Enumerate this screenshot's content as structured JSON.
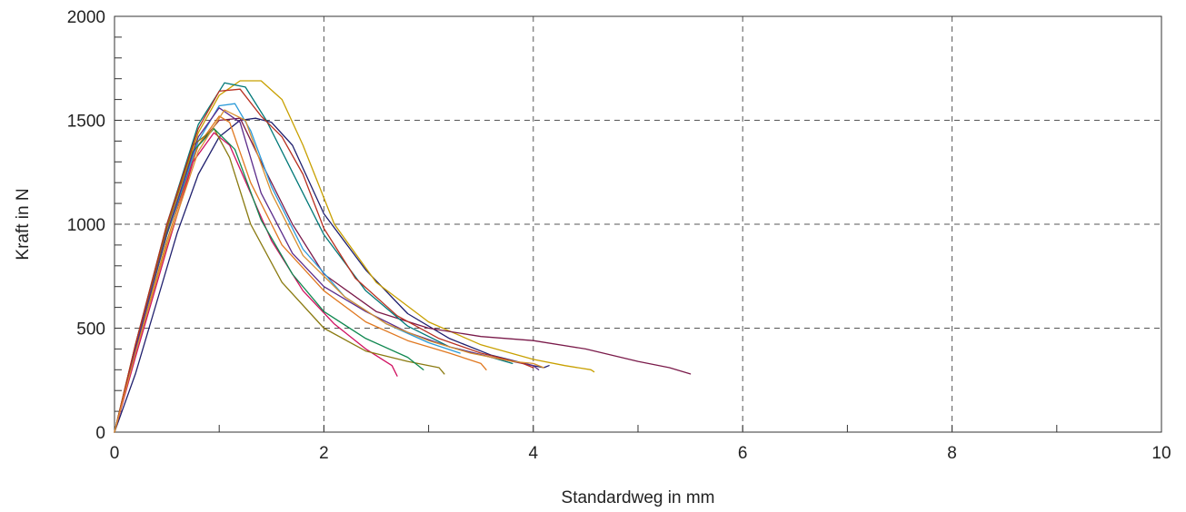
{
  "chart_data": {
    "type": "line",
    "title": "",
    "xlabel": "Standardweg in mm",
    "ylabel": "Kraft in N",
    "xlim": [
      0,
      10
    ],
    "ylim": [
      0,
      2000
    ],
    "xticks": [
      0,
      2,
      4,
      6,
      8,
      10
    ],
    "yticks": [
      0,
      500,
      1000,
      1500,
      2000
    ],
    "xtick_labels": [
      "0",
      "2",
      "4",
      "6",
      "8",
      "10"
    ],
    "ytick_labels": [
      "0",
      "500",
      "1000",
      "1500",
      "2000"
    ],
    "grid": true,
    "legend": "none",
    "series": [
      {
        "color": "#1f1f6e",
        "x": [
          0,
          0.2,
          0.4,
          0.6,
          0.8,
          1.0,
          1.2,
          1.35,
          1.5,
          1.7,
          2.0,
          2.4,
          2.8,
          3.2,
          3.6,
          4.0,
          4.1,
          4.15
        ],
        "y": [
          0,
          280,
          620,
          960,
          1240,
          1420,
          1500,
          1510,
          1490,
          1380,
          1050,
          780,
          570,
          450,
          370,
          320,
          310,
          320
        ]
      },
      {
        "color": "#c8a000",
        "x": [
          0,
          0.2,
          0.5,
          0.8,
          1.0,
          1.2,
          1.4,
          1.6,
          1.8,
          2.1,
          2.5,
          3.0,
          3.5,
          4.0,
          4.3,
          4.55,
          4.58
        ],
        "y": [
          0,
          420,
          980,
          1440,
          1620,
          1690,
          1690,
          1600,
          1380,
          1000,
          720,
          530,
          420,
          350,
          320,
          300,
          290
        ]
      },
      {
        "color": "#7a1a4a",
        "x": [
          0,
          0.2,
          0.5,
          0.8,
          1.0,
          1.2,
          1.4,
          1.7,
          2.0,
          2.5,
          3.0,
          3.5,
          4.0,
          4.5,
          5.0,
          5.3,
          5.5
        ],
        "y": [
          0,
          400,
          950,
          1380,
          1500,
          1510,
          1300,
          1000,
          760,
          580,
          500,
          460,
          440,
          400,
          340,
          310,
          280
        ]
      },
      {
        "color": "#007878",
        "x": [
          0,
          0.2,
          0.5,
          0.8,
          1.05,
          1.25,
          1.45,
          1.7,
          2.0,
          2.4,
          2.8,
          3.2,
          3.6,
          3.8
        ],
        "y": [
          0,
          420,
          1000,
          1480,
          1680,
          1660,
          1500,
          1250,
          950,
          680,
          510,
          410,
          360,
          330
        ]
      },
      {
        "color": "#2a9ad8",
        "x": [
          0,
          0.2,
          0.5,
          0.8,
          1.0,
          1.15,
          1.3,
          1.5,
          1.8,
          2.2,
          2.6,
          3.0,
          3.3
        ],
        "y": [
          0,
          400,
          950,
          1400,
          1570,
          1580,
          1450,
          1180,
          880,
          650,
          520,
          430,
          380
        ]
      },
      {
        "color": "#e07820",
        "x": [
          0,
          0.2,
          0.5,
          0.8,
          1.0,
          1.1,
          1.3,
          1.6,
          2.0,
          2.4,
          2.8,
          3.2,
          3.5,
          3.55
        ],
        "y": [
          0,
          380,
          920,
          1380,
          1520,
          1490,
          1200,
          900,
          680,
          530,
          440,
          380,
          330,
          300
        ]
      },
      {
        "color": "#d01060",
        "x": [
          0,
          0.2,
          0.5,
          0.75,
          0.95,
          1.1,
          1.3,
          1.5,
          1.8,
          2.1,
          2.4,
          2.65,
          2.7
        ],
        "y": [
          0,
          360,
          880,
          1300,
          1440,
          1380,
          1150,
          920,
          680,
          520,
          400,
          320,
          270
        ]
      },
      {
        "color": "#8a7a10",
        "x": [
          0,
          0.2,
          0.5,
          0.75,
          0.95,
          1.1,
          1.3,
          1.6,
          2.0,
          2.4,
          2.8,
          3.1,
          3.15
        ],
        "y": [
          0,
          420,
          980,
          1380,
          1460,
          1320,
          1000,
          720,
          500,
          390,
          340,
          310,
          280
        ]
      },
      {
        "color": "#108850",
        "x": [
          0,
          0.2,
          0.5,
          0.75,
          0.95,
          1.15,
          1.4,
          1.7,
          2.0,
          2.4,
          2.8,
          2.95
        ],
        "y": [
          0,
          400,
          950,
          1350,
          1460,
          1360,
          1020,
          760,
          580,
          450,
          360,
          300
        ]
      },
      {
        "color": "#5a2a8a",
        "x": [
          0,
          0.2,
          0.5,
          0.8,
          1.0,
          1.2,
          1.4,
          1.7,
          2.0,
          2.4,
          2.8,
          3.2,
          3.6,
          4.0,
          4.05
        ],
        "y": [
          0,
          400,
          960,
          1420,
          1560,
          1490,
          1150,
          860,
          700,
          580,
          480,
          410,
          360,
          320,
          300
        ]
      },
      {
        "color": "#b83020",
        "x": [
          0,
          0.2,
          0.5,
          0.8,
          1.0,
          1.2,
          1.4,
          1.6,
          1.8,
          2.0,
          2.3,
          2.7,
          3.1,
          3.5,
          3.9,
          4.0
        ],
        "y": [
          0,
          420,
          1000,
          1460,
          1640,
          1650,
          1520,
          1420,
          1240,
          980,
          740,
          560,
          450,
          380,
          330,
          310
        ]
      },
      {
        "color": "#d89030",
        "x": [
          0,
          0.2,
          0.5,
          0.8,
          1.05,
          1.25,
          1.5,
          1.8,
          2.2,
          2.6,
          3.0,
          3.4,
          3.8,
          4.0,
          4.1
        ],
        "y": [
          0,
          380,
          900,
          1350,
          1550,
          1500,
          1150,
          850,
          650,
          520,
          440,
          380,
          340,
          330,
          310
        ]
      }
    ]
  }
}
